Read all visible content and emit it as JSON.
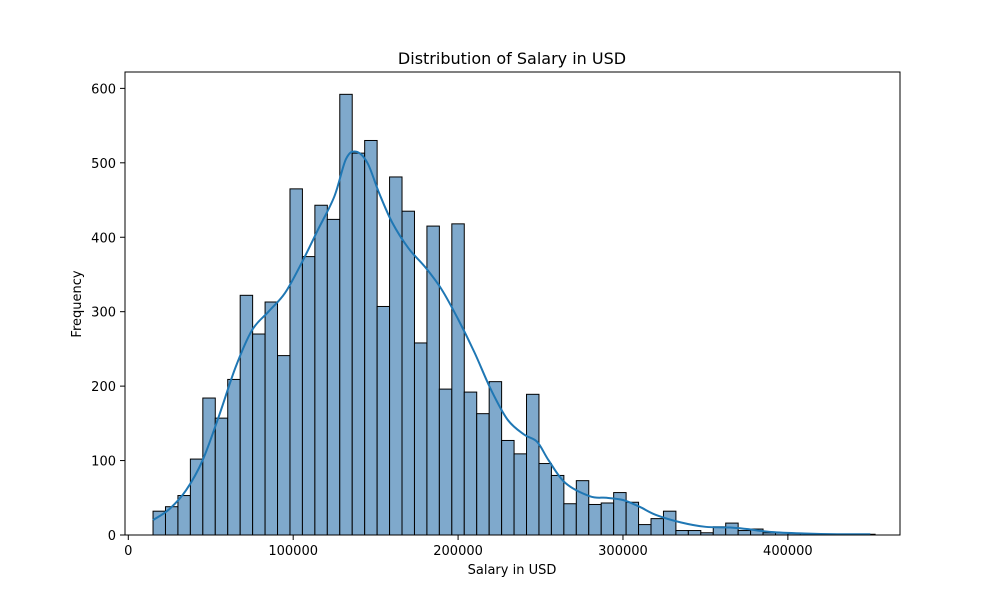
{
  "chart_data": {
    "type": "histogram",
    "title": "Distribution of Salary in USD",
    "xlabel": "Salary in USD",
    "ylabel": "Frequency",
    "xlim": [
      -2000,
      468000
    ],
    "ylim": [
      0,
      622
    ],
    "x_ticks": [
      0,
      100000,
      200000,
      300000,
      400000
    ],
    "y_ticks": [
      0,
      100,
      200,
      300,
      400,
      500,
      600
    ],
    "bin_start": 15000,
    "bin_width": 7550,
    "counts": [
      32,
      38,
      53,
      102,
      184,
      157,
      209,
      322,
      270,
      313,
      241,
      465,
      374,
      443,
      424,
      592,
      513,
      530,
      307,
      481,
      435,
      258,
      415,
      196,
      418,
      192,
      163,
      206,
      127,
      109,
      189,
      96,
      80,
      42,
      73,
      41,
      43,
      57,
      44,
      14,
      22,
      32,
      6,
      6,
      3,
      11,
      16,
      6,
      8,
      3,
      3,
      2,
      2,
      1,
      1,
      1,
      1,
      1
    ],
    "bar_color": "#7fa9cc",
    "bar_edge_color": "#000000",
    "kde": {
      "color": "#1f77b4",
      "points": [
        [
          15000,
          20
        ],
        [
          25000,
          35
        ],
        [
          35000,
          60
        ],
        [
          45000,
          100
        ],
        [
          55000,
          160
        ],
        [
          65000,
          225
        ],
        [
          75000,
          275
        ],
        [
          85000,
          300
        ],
        [
          95000,
          325
        ],
        [
          105000,
          365
        ],
        [
          115000,
          410
        ],
        [
          125000,
          455
        ],
        [
          132000,
          505
        ],
        [
          138000,
          515
        ],
        [
          145000,
          500
        ],
        [
          152000,
          460
        ],
        [
          160000,
          420
        ],
        [
          170000,
          385
        ],
        [
          180000,
          360
        ],
        [
          190000,
          330
        ],
        [
          200000,
          290
        ],
        [
          210000,
          245
        ],
        [
          220000,
          195
        ],
        [
          230000,
          155
        ],
        [
          240000,
          135
        ],
        [
          248000,
          125
        ],
        [
          255000,
          100
        ],
        [
          265000,
          70
        ],
        [
          280000,
          52
        ],
        [
          290000,
          50
        ],
        [
          300000,
          47
        ],
        [
          310000,
          38
        ],
        [
          320000,
          27
        ],
        [
          335000,
          17
        ],
        [
          350000,
          11
        ],
        [
          365000,
          10
        ],
        [
          375000,
          8
        ],
        [
          390000,
          4
        ],
        [
          410000,
          2
        ],
        [
          430000,
          1
        ],
        [
          450000,
          1
        ]
      ]
    }
  }
}
